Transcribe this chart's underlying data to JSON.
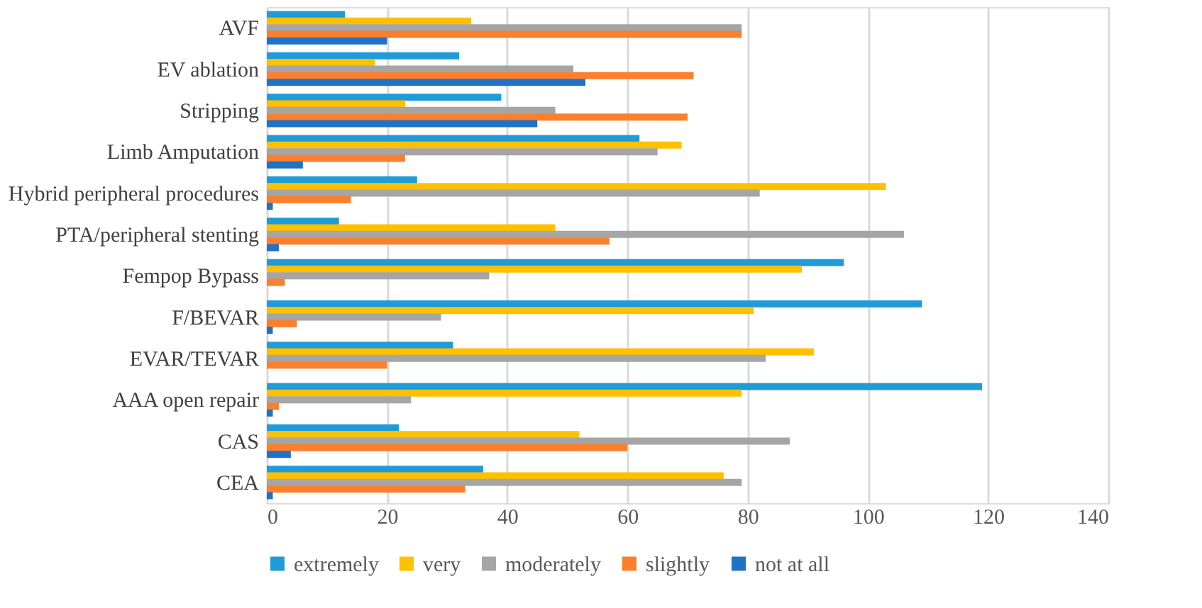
{
  "chart_data": {
    "type": "bar",
    "orientation": "horizontal",
    "categories": [
      "AVF",
      "EV ablation",
      "Stripping",
      "Limb Amputation",
      "Hybrid peripheral procedures",
      "PTA/peripheral stenting",
      "Fempop Bypass",
      "F/BEVAR",
      "EVAR/TEVAR",
      "AAA open repair",
      "CAS",
      "CEA"
    ],
    "series": [
      {
        "name": "extremely",
        "color": "#1f9bd7",
        "values": [
          13,
          32,
          39,
          62,
          25,
          12,
          96,
          109,
          31,
          119,
          22,
          36
        ]
      },
      {
        "name": "very",
        "color": "#ffc000",
        "values": [
          34,
          18,
          23,
          69,
          103,
          48,
          89,
          81,
          91,
          79,
          52,
          76
        ]
      },
      {
        "name": "moderately",
        "color": "#a5a5a5",
        "values": [
          79,
          51,
          48,
          65,
          82,
          106,
          37,
          29,
          83,
          24,
          87,
          79
        ]
      },
      {
        "name": "slightly",
        "color": "#fb7f2c",
        "values": [
          79,
          71,
          70,
          23,
          14,
          57,
          3,
          5,
          20,
          2,
          60,
          33
        ]
      },
      {
        "name": "not at all",
        "color": "#1f72c4",
        "values": [
          20,
          53,
          45,
          6,
          1,
          2,
          0,
          1,
          0,
          1,
          4,
          1
        ]
      }
    ],
    "xlim": [
      0,
      140
    ],
    "xticks": [
      0,
      20,
      40,
      60,
      80,
      100,
      120,
      140
    ],
    "grid": "x",
    "legend": "bottom"
  }
}
